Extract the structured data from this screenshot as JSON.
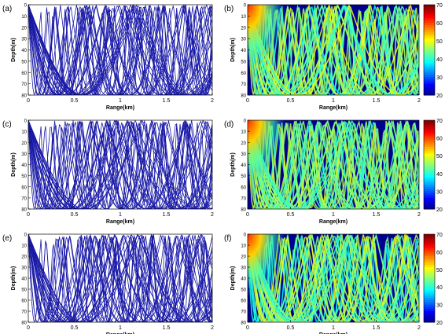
{
  "panels": [
    {
      "label": "(a)",
      "type": "ray",
      "seed": 11,
      "xlabel": "Range(km)",
      "ylabel": "Depth(m)",
      "xticks": [
        "0",
        "0.5",
        "1",
        "1.5",
        "2"
      ],
      "yticks": [
        "0",
        "10",
        "20",
        "30",
        "40",
        "50",
        "60",
        "70",
        "80"
      ]
    },
    {
      "label": "(b)",
      "type": "field",
      "seed": 11,
      "xlabel": "Range(km)",
      "ylabel": "Depth(m)",
      "xticks": [
        "0",
        "0.5",
        "1",
        "1.5",
        "2"
      ],
      "yticks": [
        "0",
        "10",
        "20",
        "30",
        "40",
        "50",
        "60",
        "70",
        "80"
      ]
    },
    {
      "label": "(c)",
      "type": "ray",
      "seed": 23,
      "xlabel": "Range(km)",
      "ylabel": "Depth(m)",
      "xticks": [
        "0",
        "0.5",
        "1",
        "1.5",
        "2"
      ],
      "yticks": [
        "0",
        "10",
        "20",
        "30",
        "40",
        "50",
        "60",
        "70",
        "80"
      ]
    },
    {
      "label": "(d)",
      "type": "field",
      "seed": 23,
      "xlabel": "Range(km)",
      "ylabel": "Depth(m)",
      "xticks": [
        "0",
        "0.5",
        "1",
        "1.5",
        "2"
      ],
      "yticks": [
        "0",
        "10",
        "20",
        "30",
        "40",
        "50",
        "60",
        "70",
        "80"
      ]
    },
    {
      "label": "(e)",
      "type": "ray",
      "seed": 37,
      "xlabel": "Range(km)",
      "ylabel": "Depth(m)",
      "xticks": [
        "0",
        "0.5",
        "1",
        "1.5",
        "2"
      ],
      "yticks": [
        "0",
        "10",
        "20",
        "30",
        "40",
        "50",
        "60",
        "70",
        "80"
      ]
    },
    {
      "label": "(f)",
      "type": "field",
      "seed": 37,
      "xlabel": "Range(km)",
      "ylabel": "Depth(m)",
      "xticks": [
        "0",
        "0.5",
        "1",
        "1.5",
        "2"
      ],
      "yticks": [
        "0",
        "10",
        "20",
        "30",
        "40",
        "50",
        "60",
        "70",
        "80"
      ]
    }
  ],
  "colorbar": {
    "ticks": [
      "20",
      "30",
      "40",
      "50",
      "60",
      "70"
    ],
    "range": [
      20,
      70
    ]
  },
  "colors": {
    "ray": "#1a1aa8",
    "background": "#00008f"
  },
  "chart_data": [
    {
      "type": "line",
      "title": "",
      "xlabel": "Range(km)",
      "ylabel": "Depth(m)",
      "xlim": [
        0,
        2
      ],
      "ylim": [
        80,
        0
      ]
    },
    {
      "type": "heatmap",
      "title": "",
      "xlabel": "Range(km)",
      "ylabel": "Depth(m)",
      "xlim": [
        0,
        2
      ],
      "ylim": [
        80,
        0
      ],
      "colorbar_range": [
        20,
        70
      ]
    },
    {
      "type": "line",
      "title": "",
      "xlabel": "Range(km)",
      "ylabel": "Depth(m)",
      "xlim": [
        0,
        2
      ],
      "ylim": [
        80,
        0
      ]
    },
    {
      "type": "heatmap",
      "title": "",
      "xlabel": "Range(km)",
      "ylabel": "Depth(m)",
      "xlim": [
        0,
        2
      ],
      "ylim": [
        80,
        0
      ],
      "colorbar_range": [
        20,
        70
      ]
    },
    {
      "type": "line",
      "title": "",
      "xlabel": "Range(km)",
      "ylabel": "Depth(m)",
      "xlim": [
        0,
        2
      ],
      "ylim": [
        80,
        0
      ]
    },
    {
      "type": "heatmap",
      "title": "",
      "xlabel": "Range(km)",
      "ylabel": "Depth(m)",
      "xlim": [
        0,
        2
      ],
      "ylim": [
        80,
        0
      ],
      "colorbar_range": [
        20,
        70
      ]
    }
  ]
}
